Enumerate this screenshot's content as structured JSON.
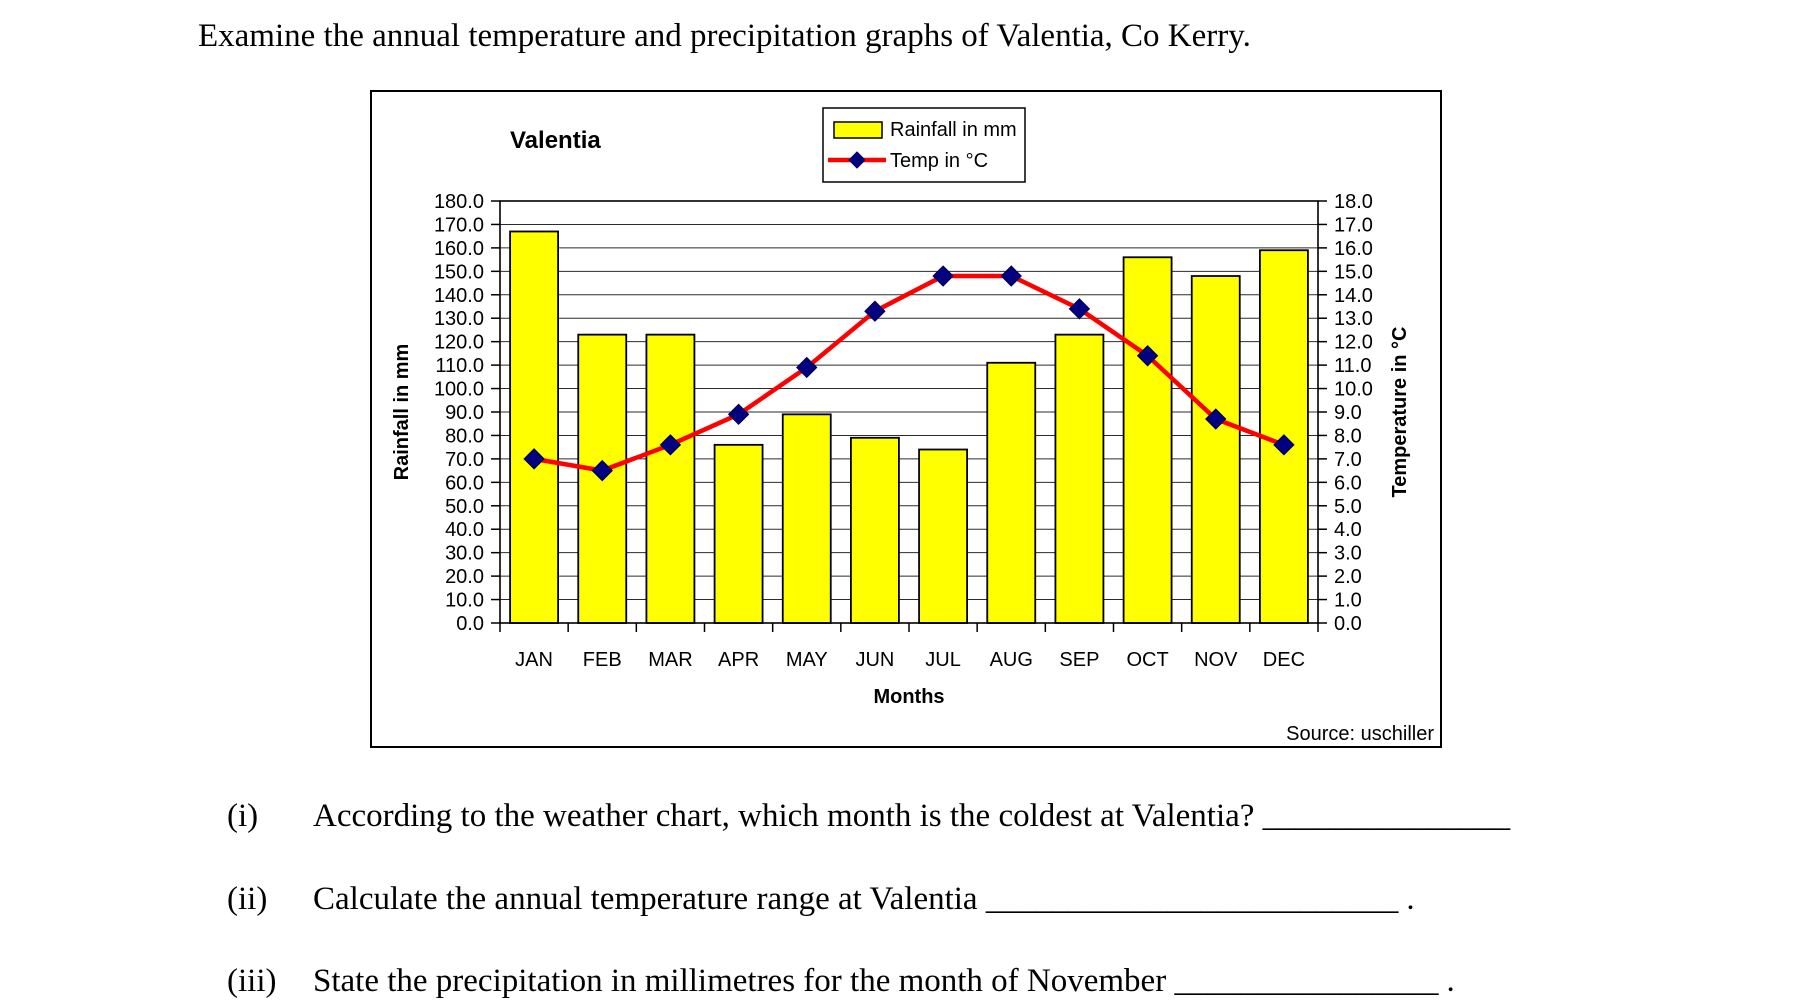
{
  "heading": "Examine the annual temperature and precipitation graphs of Valentia, Co Kerry.",
  "questions": [
    {
      "number": "(i)",
      "text": "According to the weather chart, which month is the coldest at Valentia?",
      "blank": "_______________",
      "suffix": ""
    },
    {
      "number": "(ii)",
      "text": "Calculate the annual temperature range at Valentia",
      "blank": "_________________________",
      "suffix": "."
    },
    {
      "number": "(iii)",
      "text": "State the precipitation in millimetres for the month of November",
      "blank": "________________",
      "suffix": "."
    }
  ],
  "chart_data": {
    "type": "bar+line",
    "title": "Valentia",
    "xlabel": "Months",
    "source": "Source: uschiller",
    "grid": true,
    "legend_position": "top-right",
    "categories": [
      "JAN",
      "FEB",
      "MAR",
      "APR",
      "MAY",
      "JUN",
      "JUL",
      "AUG",
      "SEP",
      "OCT",
      "NOV",
      "DEC"
    ],
    "series": [
      {
        "name": "Rainfall in mm",
        "type": "bar",
        "axis": "left",
        "color": "#FFFF00",
        "stroke": "#000000",
        "values": [
          167,
          123,
          123,
          76,
          89,
          79,
          74,
          111,
          123,
          156,
          148,
          159
        ]
      },
      {
        "name": "Temp in °C",
        "type": "line",
        "axis": "right",
        "color": "#FF0000",
        "marker": "diamond",
        "marker_color": "#000080",
        "values": [
          7.0,
          6.5,
          7.6,
          8.9,
          10.9,
          13.3,
          14.8,
          14.8,
          13.4,
          11.4,
          8.7,
          7.6
        ]
      }
    ],
    "left_axis": {
      "label": "Rainfall in mm",
      "min": 0,
      "max": 180,
      "step": 10,
      "tick_decimals": 1
    },
    "right_axis": {
      "label": "Temperature in °C",
      "min": 0,
      "max": 18,
      "step": 1,
      "tick_decimals": 1
    }
  }
}
